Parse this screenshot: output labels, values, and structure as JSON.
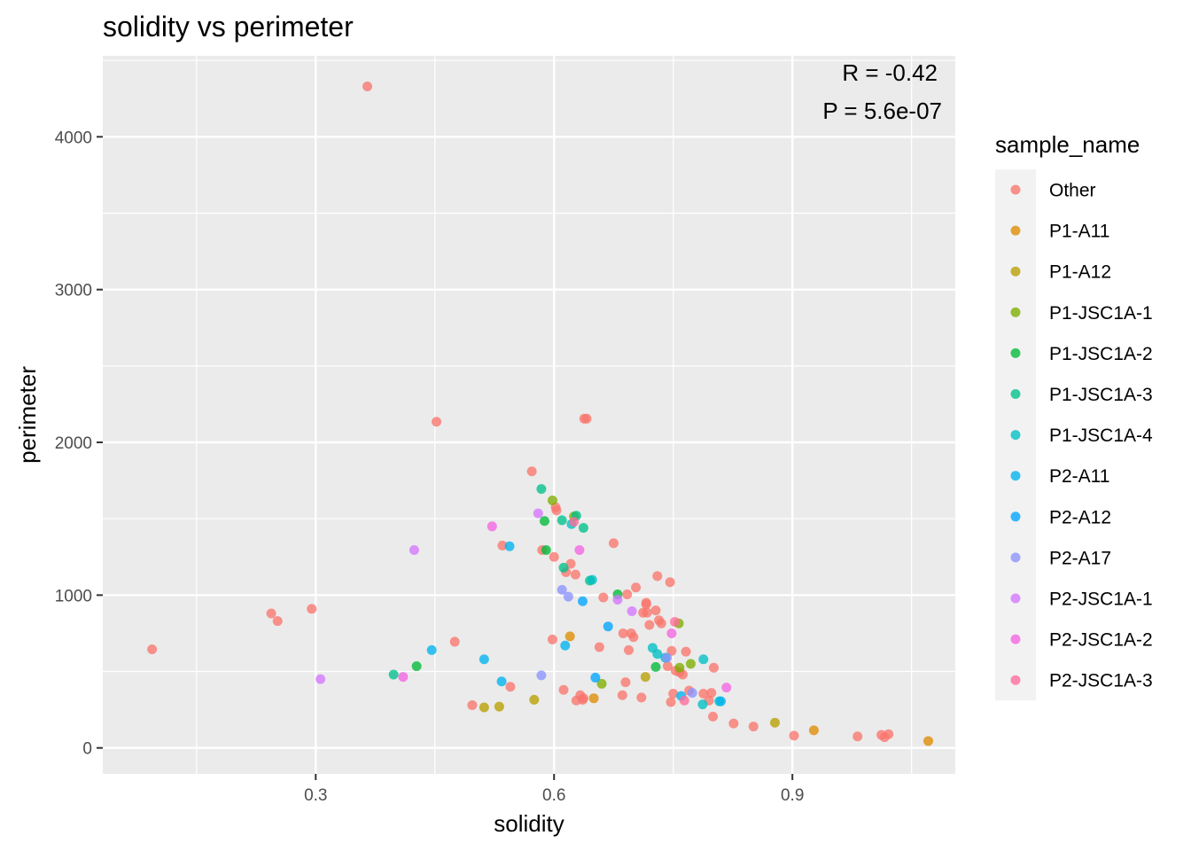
{
  "chart_data": {
    "type": "scatter",
    "title": "solidity vs perimeter",
    "xlabel": "solidity",
    "ylabel": "perimeter",
    "xlim": [
      0.032,
      1.105
    ],
    "ylim": [
      -170,
      4530
    ],
    "xticks": [
      0.3,
      0.6,
      0.9
    ],
    "xtick_labels": [
      "0.3",
      "0.6",
      "0.9"
    ],
    "xminor": [
      0.15,
      0.45,
      0.75,
      1.05
    ],
    "yticks": [
      0,
      1000,
      2000,
      3000,
      4000
    ],
    "ytick_labels": [
      "0",
      "1000",
      "2000",
      "3000",
      "4000"
    ],
    "yminor": [
      500,
      1500,
      2500,
      3500,
      4500
    ],
    "grid": true,
    "legend_title": "sample_name",
    "legend_position": "right",
    "annotations": [
      "R = -0.42",
      "P = 5.6e-07"
    ],
    "colors": {
      "Other": "#F8766D",
      "P1-A11": "#DE8C00",
      "P1-A12": "#B79F00",
      "P1-JSC1A-1": "#7CAE00",
      "P1-JSC1A-2": "#00BA38",
      "P1-JSC1A-3": "#00C08B",
      "P1-JSC1A-4": "#00BFC4",
      "P2-A11": "#00B4F0",
      "P2-A12": "#00A5FF",
      "P2-A17": "#8B93FF",
      "P2-JSC1A-1": "#D376FF",
      "P2-JSC1A-2": "#F564E3",
      "P2-JSC1A-3": "#FF6C9A"
    },
    "series": [
      {
        "name": "Other",
        "points": [
          [
            0.094,
            645
          ],
          [
            0.244,
            880
          ],
          [
            0.252,
            830
          ],
          [
            0.295,
            910
          ],
          [
            0.365,
            4330
          ],
          [
            0.452,
            2135
          ],
          [
            0.475,
            695
          ],
          [
            0.497,
            280
          ],
          [
            0.535,
            1325
          ],
          [
            0.545,
            400
          ],
          [
            0.572,
            1810
          ],
          [
            0.585,
            1295
          ],
          [
            0.598,
            710
          ],
          [
            0.6,
            1250
          ],
          [
            0.602,
            1575
          ],
          [
            0.603,
            1555
          ],
          [
            0.612,
            380
          ],
          [
            0.615,
            1150
          ],
          [
            0.621,
            1205
          ],
          [
            0.627,
            1135
          ],
          [
            0.628,
            310
          ],
          [
            0.633,
            345
          ],
          [
            0.636,
            315
          ],
          [
            0.637,
            325
          ],
          [
            0.638,
            2155
          ],
          [
            0.641,
            2155
          ],
          [
            0.657,
            660
          ],
          [
            0.662,
            985
          ],
          [
            0.675,
            1340
          ],
          [
            0.686,
            345
          ],
          [
            0.687,
            750
          ],
          [
            0.69,
            430
          ],
          [
            0.692,
            1005
          ],
          [
            0.694,
            640
          ],
          [
            0.697,
            750
          ],
          [
            0.7,
            725
          ],
          [
            0.703,
            1050
          ],
          [
            0.71,
            330
          ],
          [
            0.712,
            885
          ],
          [
            0.716,
            950
          ],
          [
            0.716,
            940
          ],
          [
            0.717,
            885
          ],
          [
            0.72,
            805
          ],
          [
            0.728,
            900
          ],
          [
            0.73,
            1125
          ],
          [
            0.732,
            835
          ],
          [
            0.735,
            815
          ],
          [
            0.743,
            535
          ],
          [
            0.746,
            1085
          ],
          [
            0.747,
            300
          ],
          [
            0.748,
            635
          ],
          [
            0.75,
            355
          ],
          [
            0.753,
            505
          ],
          [
            0.758,
            495
          ],
          [
            0.762,
            480
          ],
          [
            0.766,
            630
          ],
          [
            0.77,
            375
          ],
          [
            0.788,
            355
          ],
          [
            0.795,
            310
          ],
          [
            0.798,
            360
          ],
          [
            0.8,
            205
          ],
          [
            0.801,
            525
          ],
          [
            0.826,
            160
          ],
          [
            0.851,
            140
          ],
          [
            0.902,
            80
          ],
          [
            0.982,
            75
          ],
          [
            1.012,
            85
          ],
          [
            1.016,
            70
          ],
          [
            1.021,
            90
          ]
        ]
      },
      {
        "name": "P1-A11",
        "points": [
          [
            0.62,
            730
          ],
          [
            0.65,
            325
          ],
          [
            0.927,
            115
          ],
          [
            1.071,
            45
          ]
        ]
      },
      {
        "name": "P1-A12",
        "points": [
          [
            0.512,
            265
          ],
          [
            0.531,
            270
          ],
          [
            0.575,
            315
          ],
          [
            0.715,
            465
          ],
          [
            0.878,
            165
          ]
        ]
      },
      {
        "name": "P1-JSC1A-1",
        "points": [
          [
            0.598,
            1620
          ],
          [
            0.625,
            1515
          ],
          [
            0.66,
            420
          ],
          [
            0.757,
            815
          ],
          [
            0.758,
            525
          ],
          [
            0.772,
            550
          ]
        ]
      },
      {
        "name": "P1-JSC1A-2",
        "points": [
          [
            0.427,
            535
          ],
          [
            0.588,
            1485
          ],
          [
            0.59,
            1295
          ],
          [
            0.68,
            1005
          ],
          [
            0.728,
            530
          ]
        ]
      },
      {
        "name": "P1-JSC1A-3",
        "points": [
          [
            0.398,
            480
          ],
          [
            0.584,
            1695
          ],
          [
            0.61,
            1490
          ],
          [
            0.612,
            1180
          ],
          [
            0.628,
            1520
          ],
          [
            0.637,
            1440
          ],
          [
            0.645,
            1095
          ]
        ]
      },
      {
        "name": "P1-JSC1A-4",
        "points": [
          [
            0.622,
            1465
          ],
          [
            0.648,
            1100
          ],
          [
            0.724,
            655
          ],
          [
            0.73,
            615
          ],
          [
            0.74,
            590
          ],
          [
            0.787,
            285
          ],
          [
            0.788,
            580
          ],
          [
            0.808,
            305
          ]
        ]
      },
      {
        "name": "P2-A11",
        "points": [
          [
            0.446,
            640
          ],
          [
            0.512,
            580
          ],
          [
            0.534,
            435
          ],
          [
            0.544,
            1320
          ],
          [
            0.614,
            670
          ],
          [
            0.76,
            340
          ],
          [
            0.81,
            305
          ]
        ]
      },
      {
        "name": "P2-A12",
        "points": [
          [
            0.636,
            960
          ],
          [
            0.652,
            460
          ],
          [
            0.668,
            795
          ]
        ]
      },
      {
        "name": "P2-A17",
        "points": [
          [
            0.584,
            475
          ],
          [
            0.61,
            1035
          ],
          [
            0.618,
            990
          ],
          [
            0.742,
            590
          ],
          [
            0.774,
            360
          ]
        ]
      },
      {
        "name": "P2-JSC1A-1",
        "points": [
          [
            0.306,
            450
          ],
          [
            0.424,
            1295
          ],
          [
            0.58,
            1535
          ],
          [
            0.68,
            970
          ],
          [
            0.698,
            895
          ]
        ]
      },
      {
        "name": "P2-JSC1A-2",
        "points": [
          [
            0.41,
            465
          ],
          [
            0.522,
            1450
          ],
          [
            0.632,
            1295
          ],
          [
            0.748,
            750
          ],
          [
            0.817,
            395
          ]
        ]
      },
      {
        "name": "P2-JSC1A-3",
        "points": [
          [
            0.625,
            1480
          ],
          [
            0.752,
            825
          ],
          [
            0.764,
            310
          ]
        ]
      }
    ]
  }
}
